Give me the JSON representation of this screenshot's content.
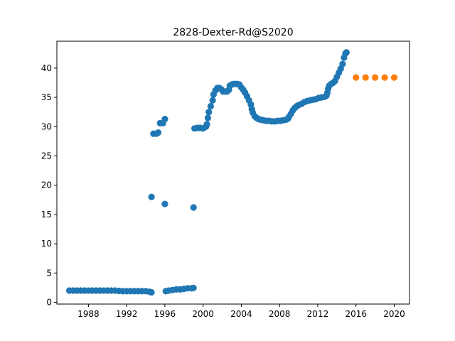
{
  "chart_data": {
    "type": "scatter",
    "title": "2828-Dexter-Rd@S2020",
    "xlabel": "",
    "ylabel": "",
    "xlim": [
      1984.7,
      2021.6
    ],
    "ylim": [
      -0.3,
      44.6
    ],
    "xticks": [
      1988,
      1992,
      1996,
      2000,
      2004,
      2008,
      2012,
      2016,
      2020
    ],
    "yticks": [
      0,
      5,
      10,
      15,
      20,
      25,
      30,
      35,
      40
    ],
    "grid": false,
    "legend": "none",
    "series": [
      {
        "color": "#1f77b4",
        "points": [
          [
            1986.0,
            2.0
          ],
          [
            1986.4,
            2.0
          ],
          [
            1986.8,
            2.0
          ],
          [
            1987.2,
            2.0
          ],
          [
            1987.6,
            2.0
          ],
          [
            1988.0,
            2.0
          ],
          [
            1988.4,
            2.0
          ],
          [
            1988.8,
            2.0
          ],
          [
            1989.2,
            2.0
          ],
          [
            1989.6,
            2.0
          ],
          [
            1990.0,
            2.0
          ],
          [
            1990.4,
            2.0
          ],
          [
            1990.8,
            2.0
          ],
          [
            1991.2,
            1.95
          ],
          [
            1991.6,
            1.9
          ],
          [
            1992.0,
            1.9
          ],
          [
            1992.4,
            1.9
          ],
          [
            1992.8,
            1.9
          ],
          [
            1993.2,
            1.9
          ],
          [
            1993.6,
            1.9
          ],
          [
            1994.0,
            1.9
          ],
          [
            1994.4,
            1.8
          ],
          [
            1994.6,
            1.7
          ],
          [
            1994.6,
            18.0
          ],
          [
            1994.8,
            28.8
          ],
          [
            1995.1,
            28.8
          ],
          [
            1995.3,
            29.0
          ],
          [
            1995.5,
            30.6
          ],
          [
            1995.8,
            30.6
          ],
          [
            1996.0,
            31.3
          ],
          [
            1996.0,
            16.8
          ],
          [
            1996.1,
            1.9
          ],
          [
            1996.4,
            2.0
          ],
          [
            1996.8,
            2.1
          ],
          [
            1997.2,
            2.2
          ],
          [
            1997.6,
            2.2
          ],
          [
            1998.0,
            2.3
          ],
          [
            1998.4,
            2.4
          ],
          [
            1998.8,
            2.4
          ],
          [
            1999.0,
            2.45
          ],
          [
            1999.0,
            16.2
          ],
          [
            1999.1,
            29.7
          ],
          [
            1999.4,
            29.8
          ],
          [
            1999.7,
            29.8
          ],
          [
            2000.0,
            29.7
          ],
          [
            2000.3,
            30.0
          ],
          [
            2000.4,
            30.4
          ],
          [
            2000.5,
            31.5
          ],
          [
            2000.6,
            32.5
          ],
          [
            2000.8,
            33.5
          ],
          [
            2001.0,
            34.5
          ],
          [
            2001.1,
            35.5
          ],
          [
            2001.3,
            36.2
          ],
          [
            2001.5,
            36.6
          ],
          [
            2001.7,
            36.6
          ],
          [
            2001.9,
            36.4
          ],
          [
            2002.1,
            36.0
          ],
          [
            2002.3,
            36.0
          ],
          [
            2002.5,
            36.0
          ],
          [
            2002.7,
            36.3
          ],
          [
            2002.8,
            37.0
          ],
          [
            2003.0,
            37.2
          ],
          [
            2003.2,
            37.3
          ],
          [
            2003.4,
            37.3
          ],
          [
            2003.6,
            37.3
          ],
          [
            2003.8,
            37.2
          ],
          [
            2004.0,
            36.7
          ],
          [
            2004.2,
            36.3
          ],
          [
            2004.4,
            35.8
          ],
          [
            2004.6,
            35.2
          ],
          [
            2004.8,
            34.5
          ],
          [
            2005.0,
            33.8
          ],
          [
            2005.1,
            33.0
          ],
          [
            2005.2,
            32.4
          ],
          [
            2005.4,
            31.8
          ],
          [
            2005.6,
            31.5
          ],
          [
            2005.8,
            31.3
          ],
          [
            2006.0,
            31.2
          ],
          [
            2006.3,
            31.1
          ],
          [
            2006.6,
            31.0
          ],
          [
            2006.9,
            31.0
          ],
          [
            2007.2,
            30.9
          ],
          [
            2007.5,
            30.9
          ],
          [
            2007.8,
            31.0
          ],
          [
            2008.1,
            31.0
          ],
          [
            2008.4,
            31.1
          ],
          [
            2008.7,
            31.2
          ],
          [
            2008.9,
            31.4
          ],
          [
            2009.0,
            31.7
          ],
          [
            2009.2,
            32.2
          ],
          [
            2009.4,
            32.8
          ],
          [
            2009.6,
            33.2
          ],
          [
            2009.8,
            33.5
          ],
          [
            2010.0,
            33.7
          ],
          [
            2010.3,
            33.9
          ],
          [
            2010.6,
            34.2
          ],
          [
            2010.9,
            34.4
          ],
          [
            2011.2,
            34.5
          ],
          [
            2011.5,
            34.6
          ],
          [
            2011.8,
            34.7
          ],
          [
            2012.1,
            34.9
          ],
          [
            2012.4,
            35.0
          ],
          [
            2012.7,
            35.1
          ],
          [
            2012.9,
            35.3
          ],
          [
            2013.0,
            35.8
          ],
          [
            2013.1,
            36.5
          ],
          [
            2013.2,
            37.0
          ],
          [
            2013.4,
            37.3
          ],
          [
            2013.6,
            37.5
          ],
          [
            2013.8,
            37.8
          ],
          [
            2014.0,
            38.5
          ],
          [
            2014.2,
            39.2
          ],
          [
            2014.4,
            39.9
          ],
          [
            2014.6,
            40.7
          ],
          [
            2014.75,
            41.8
          ],
          [
            2014.9,
            42.5
          ],
          [
            2015.0,
            42.7
          ]
        ]
      },
      {
        "color": "#ff7f0e",
        "points": [
          [
            2016,
            38.4
          ],
          [
            2017,
            38.4
          ],
          [
            2018,
            38.4
          ],
          [
            2019,
            38.4
          ],
          [
            2020,
            38.4
          ]
        ]
      }
    ]
  }
}
